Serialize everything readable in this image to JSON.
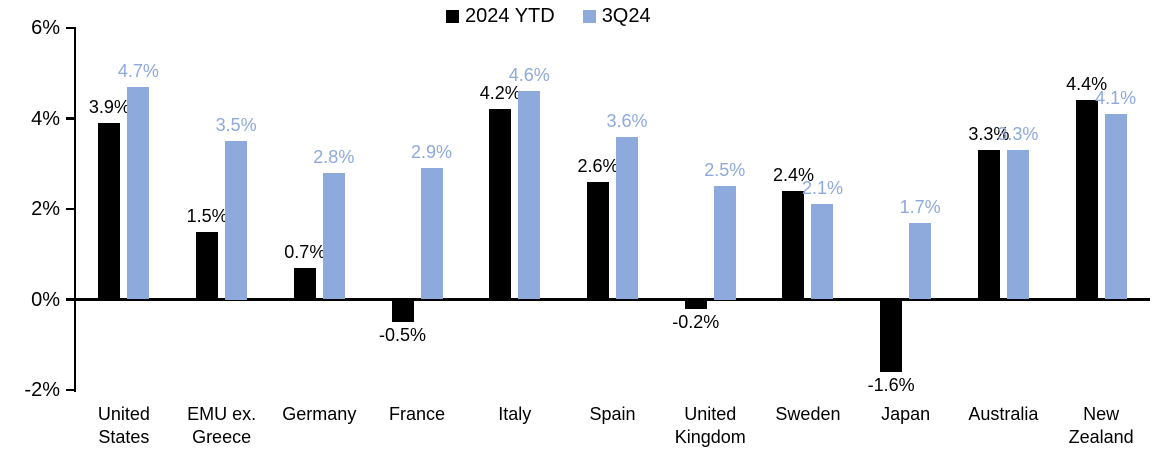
{
  "chart_data": {
    "type": "bar",
    "title": "",
    "categories": [
      "United States",
      "EMU ex. Greece",
      "Germany",
      "France",
      "Italy",
      "Spain",
      "United Kingdom",
      "Sweden",
      "Japan",
      "Australia",
      "New Zealand"
    ],
    "series": [
      {
        "name": "2024 YTD",
        "color": "#000000",
        "values": [
          3.9,
          1.5,
          0.7,
          -0.5,
          4.2,
          2.6,
          -0.2,
          2.4,
          -1.6,
          3.3,
          4.4
        ]
      },
      {
        "name": "3Q24",
        "color": "#8EA9DB",
        "values": [
          4.7,
          3.5,
          2.8,
          2.9,
          4.6,
          3.6,
          2.5,
          2.1,
          1.7,
          3.3,
          4.1
        ]
      }
    ],
    "data_labels": [
      "3.9%",
      "1.5%",
      "0.7%",
      "-0.5%",
      "4.2%",
      "2.6%",
      "-0.2%",
      "2.4%",
      "-1.6%",
      "3.3%",
      "4.4%",
      "4.7%",
      "3.5%",
      "2.8%",
      "2.9%",
      "4.6%",
      "3.6%",
      "2.5%",
      "2.1%",
      "1.7%",
      "3.3%",
      "4.1%"
    ],
    "value_suffix": "%",
    "y_axis": {
      "tick_labels": [
        "6%",
        "4%",
        "2%",
        "0%",
        "-2%"
      ],
      "tick_values": [
        6,
        4,
        2,
        0,
        -2
      ],
      "min": -2,
      "max": 6
    },
    "xlabel": "",
    "ylabel": "",
    "grid": false,
    "legend_position": "top-center"
  }
}
